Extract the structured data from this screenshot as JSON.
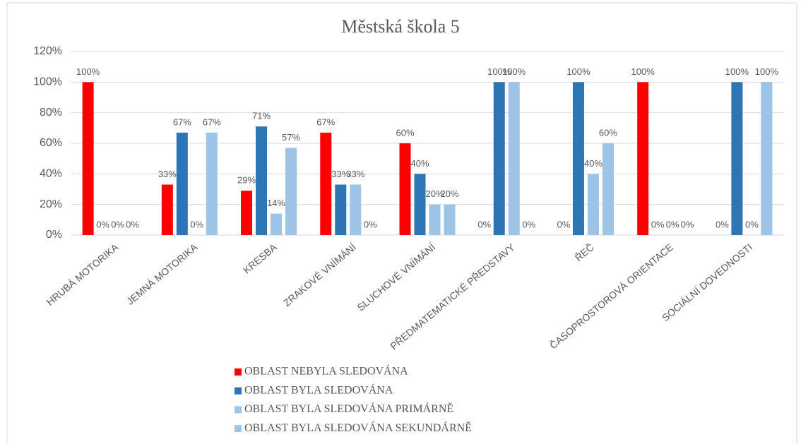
{
  "chart_data": {
    "type": "bar",
    "title": "Městská škola 5",
    "categories": [
      "HRUBÁ MOTORIKA",
      "JEMNÁ MOTORIKA",
      "KRESBA",
      "ZRAKOVÉ VNÍMÁNÍ",
      "SLUCHOVÉ VNÍMÁNÍ",
      "PŘEDMATEMATICKÉ PŘEDSTAVY",
      "ŘEČ",
      "ČASOPROSTOROVÁ ORIENTACE",
      "SOCIÁLNÍ DOVEDNOSTI"
    ],
    "series": [
      {
        "name": "OBLAST NEBYLA SLEDOVÁNA",
        "color": "#ff0000",
        "values": [
          100,
          33,
          29,
          67,
          60,
          0,
          0,
          100,
          0
        ],
        "value_labels": [
          "100%",
          "33%",
          "29%",
          "67%",
          "60%",
          "0%",
          "0%",
          "100%",
          "0%"
        ]
      },
      {
        "name": "OBLAST BYLA SLEDOVÁNA",
        "color": "#2e75b6",
        "values": [
          0,
          67,
          71,
          33,
          40,
          100,
          100,
          0,
          100
        ],
        "value_labels": [
          "0%",
          "67%",
          "71%",
          "33%",
          "40%",
          "100%",
          "100%",
          "0%",
          "100%"
        ]
      },
      {
        "name": "OBLAST BYLA SLEDOVÁNA PRIMÁRNĚ",
        "color": "#9dc3e6",
        "values": [
          0,
          0,
          14,
          33,
          20,
          100,
          40,
          0,
          0
        ],
        "value_labels": [
          "0%",
          "0%",
          "14%",
          "33%",
          "20%",
          "100%",
          "40%",
          "0%",
          "0%"
        ]
      },
      {
        "name": "OBLAST BYLA SLEDOVÁNA SEKUNDÁRNĚ",
        "color": "#9dc3e6",
        "values": [
          0,
          67,
          57,
          0,
          20,
          0,
          60,
          0,
          100
        ],
        "value_labels": [
          "0%",
          "67%",
          "57%",
          "0%",
          "20%",
          "0%",
          "60%",
          "0%",
          "100%"
        ]
      }
    ],
    "ylim": [
      0,
      120
    ],
    "yticks": [
      {
        "value": 0,
        "label": "0%"
      },
      {
        "value": 20,
        "label": "20%"
      },
      {
        "value": 40,
        "label": "40%"
      },
      {
        "value": 60,
        "label": "60%"
      },
      {
        "value": 80,
        "label": "80%"
      },
      {
        "value": 100,
        "label": "100%"
      },
      {
        "value": 120,
        "label": "120%"
      }
    ],
    "grid": true,
    "legend": "bottom"
  }
}
